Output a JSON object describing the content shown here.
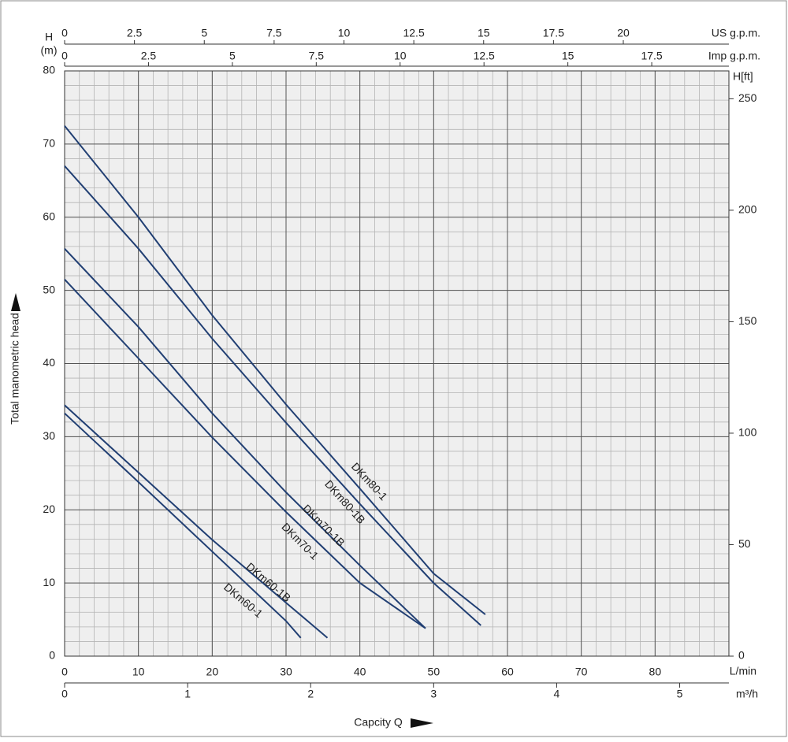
{
  "chart_data": {
    "type": "line",
    "y_label": "Total manometric head",
    "y_unit_top": "H",
    "y_unit_bottom": "(m)",
    "x_label": "Capcity Q",
    "x_unit": "L/min",
    "xlim": [
      0,
      90
    ],
    "xticks": [
      0,
      10,
      20,
      30,
      40,
      50,
      60,
      70,
      80
    ],
    "ylim": [
      0,
      80
    ],
    "yticks": [
      0,
      10,
      20,
      30,
      40,
      50,
      60,
      70,
      80
    ],
    "y2_label": "H[ft]",
    "y2lim": [
      0,
      262.5
    ],
    "y2ticks": [
      0,
      50,
      100,
      150,
      200,
      250
    ],
    "top_axes": [
      {
        "label": "US g.p.m.",
        "lim": [
          0,
          23.78
        ],
        "ticks": [
          0,
          2.5,
          5,
          7.5,
          10,
          12.5,
          15,
          17.5,
          20
        ]
      },
      {
        "label": "Imp g.p.m.",
        "lim": [
          0,
          19.8
        ],
        "ticks": [
          0,
          2.5,
          5,
          7.5,
          10,
          12.5,
          15,
          17.5
        ]
      }
    ],
    "bottom_axis2": {
      "label": "m³/h",
      "lim": [
        0,
        5.4
      ],
      "ticks": [
        0,
        1,
        2,
        3,
        4,
        5
      ]
    },
    "grid": true,
    "series": [
      {
        "name": "DKm80-1",
        "color": "#213f73",
        "x": [
          0,
          10,
          20,
          30,
          40,
          50,
          57
        ],
        "values": [
          72.5,
          60,
          46.6,
          34.4,
          22.9,
          11.3,
          5.7
        ]
      },
      {
        "name": "DKm80-1B",
        "color": "#213f73",
        "x": [
          0,
          10,
          20,
          30,
          40,
          50,
          56.4
        ],
        "values": [
          67,
          55.7,
          43.4,
          31.9,
          20.8,
          10,
          4.2
        ]
      },
      {
        "name": "DKm70-1B",
        "color": "#213f73",
        "x": [
          0,
          10,
          20,
          30,
          40,
          48.9
        ],
        "values": [
          55.7,
          45,
          33.2,
          22.4,
          12.4,
          3.8
        ]
      },
      {
        "name": "DKm70-1",
        "color": "#213f73",
        "x": [
          0,
          10,
          20,
          30,
          40,
          48.9
        ],
        "values": [
          51.5,
          40.7,
          29.9,
          19.7,
          10,
          3.8
        ]
      },
      {
        "name": "DKm60-1B",
        "color": "#213f73",
        "x": [
          0,
          10,
          20,
          30,
          35.6
        ],
        "values": [
          34.3,
          25.1,
          15.9,
          7.3,
          2.5
        ]
      },
      {
        "name": "DKm60-1",
        "color": "#213f73",
        "x": [
          0,
          10,
          20,
          30,
          32
        ],
        "values": [
          33.2,
          23.8,
          14.3,
          4.8,
          2.5
        ]
      }
    ]
  }
}
